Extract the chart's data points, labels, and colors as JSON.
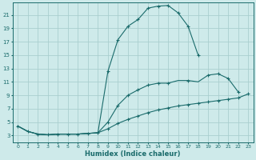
{
  "xlabel": "Humidex (Indice chaleur)",
  "ylabel": "",
  "bg_color": "#ceeaea",
  "line_color": "#1a6b6b",
  "grid_color": "#aacfcf",
  "x_ticks": [
    0,
    1,
    2,
    3,
    4,
    5,
    6,
    7,
    8,
    9,
    10,
    11,
    12,
    13,
    14,
    15,
    16,
    17,
    18,
    19,
    20,
    21,
    22,
    23
  ],
  "y_ticks": [
    3,
    5,
    7,
    9,
    11,
    13,
    15,
    17,
    19,
    21
  ],
  "xlim": [
    -0.5,
    23.5
  ],
  "ylim": [
    2.0,
    22.8
  ],
  "curve_top": {
    "x": [
      0,
      1,
      2,
      3,
      4,
      5,
      6,
      7,
      8,
      9,
      10,
      11,
      12,
      13,
      14,
      15,
      16,
      17,
      18
    ],
    "y": [
      4.4,
      3.6,
      3.2,
      3.1,
      3.2,
      3.2,
      3.2,
      3.3,
      3.4,
      12.6,
      17.3,
      19.3,
      20.3,
      22.0,
      22.3,
      22.4,
      21.3,
      19.3,
      15.0
    ]
  },
  "curve_mid": {
    "x": [
      0,
      1,
      2,
      3,
      4,
      5,
      6,
      7,
      8,
      9,
      10,
      11,
      12,
      13,
      14,
      15,
      16,
      17,
      18,
      19,
      20,
      21,
      22
    ],
    "y": [
      4.4,
      3.6,
      3.2,
      3.1,
      3.2,
      3.2,
      3.2,
      3.3,
      3.4,
      5.0,
      7.5,
      9.0,
      9.8,
      10.5,
      10.8,
      10.8,
      11.2,
      11.2,
      11.0,
      12.0,
      12.2,
      11.5,
      9.5
    ]
  },
  "curve_bot": {
    "x": [
      0,
      1,
      2,
      3,
      4,
      5,
      6,
      7,
      8,
      9,
      10,
      11,
      12,
      13,
      14,
      15,
      16,
      17,
      18,
      19,
      20,
      21,
      22,
      23
    ],
    "y": [
      4.4,
      3.6,
      3.2,
      3.1,
      3.2,
      3.2,
      3.2,
      3.3,
      3.4,
      4.0,
      4.8,
      5.4,
      5.9,
      6.4,
      6.8,
      7.1,
      7.4,
      7.6,
      7.8,
      8.0,
      8.2,
      8.4,
      8.6,
      9.2
    ]
  },
  "marker_x_top": [
    0,
    1,
    2,
    3,
    4,
    5,
    6,
    7,
    8,
    9,
    10,
    11,
    12,
    13,
    14,
    15,
    16,
    17,
    18
  ],
  "marker_x_mid": [
    9,
    10,
    11,
    12,
    13,
    14,
    15,
    17,
    19,
    20,
    21,
    22
  ],
  "marker_x_bot": [
    9,
    10,
    11,
    12,
    13,
    14,
    15,
    16,
    17,
    18,
    19,
    20,
    21,
    22,
    23
  ]
}
